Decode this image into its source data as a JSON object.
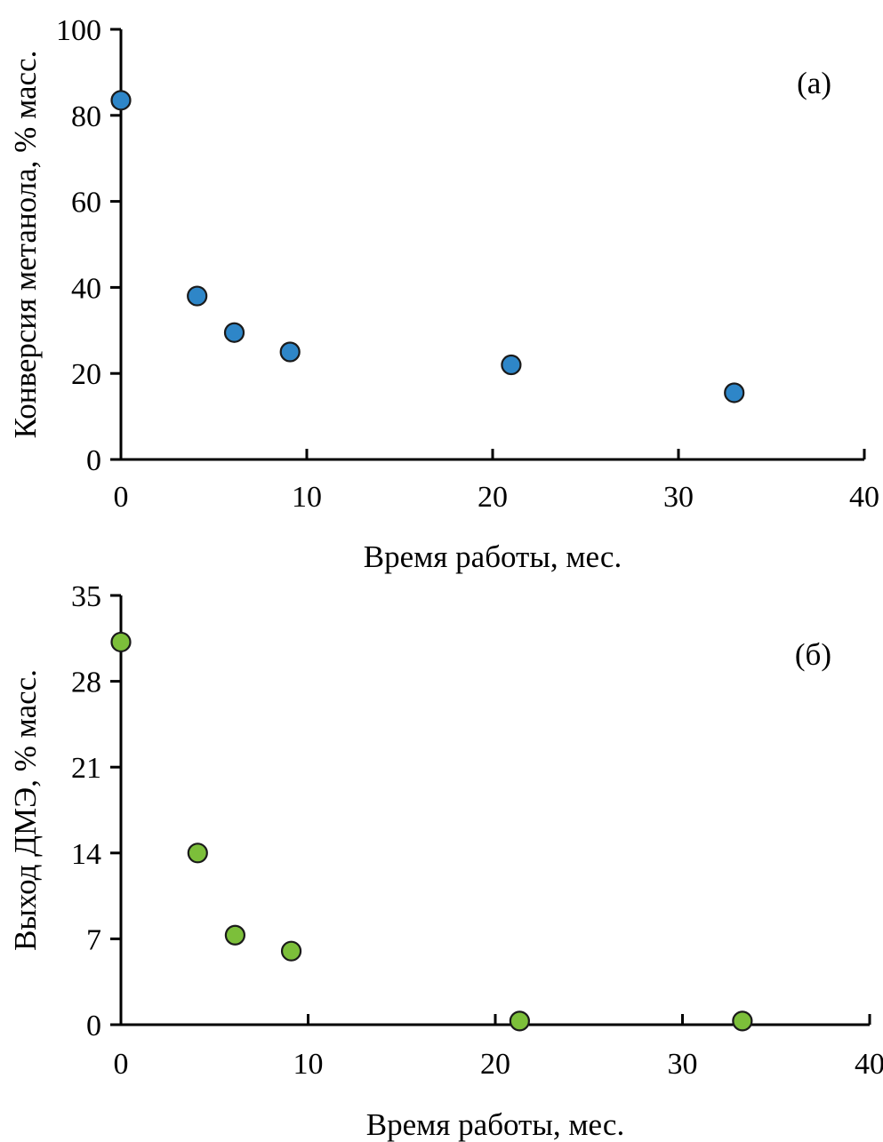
{
  "chart_data": [
    {
      "type": "scatter",
      "panel_label": "(a)",
      "xlabel": "Время работы, мес.",
      "ylabel": "Конверсия метанола, % масс.",
      "xlim": [
        0,
        40
      ],
      "ylim": [
        0,
        100
      ],
      "xticks": [
        0,
        10,
        20,
        30,
        40
      ],
      "yticks": [
        0,
        20,
        40,
        60,
        80,
        100
      ],
      "x_tick_labels": [
        "0",
        "10",
        "20",
        "30",
        "40"
      ],
      "y_tick_labels": [
        "0",
        "20",
        "40",
        "60",
        "80",
        "100"
      ],
      "grid": false,
      "marker_color": "#2e86c8",
      "series": [
        {
          "name": "Конверсия метанола",
          "x": [
            0,
            4.1,
            6.1,
            9.1,
            21,
            33
          ],
          "y": [
            83.5,
            38,
            29.5,
            25,
            22,
            15.5
          ]
        }
      ]
    },
    {
      "type": "scatter",
      "panel_label": "(б)",
      "xlabel": "Время работы, мес.",
      "ylabel": "Выход ДМЭ, % масс.",
      "xlim": [
        0,
        40
      ],
      "ylim": [
        0,
        35
      ],
      "xticks": [
        0,
        10,
        20,
        30,
        40
      ],
      "yticks": [
        0,
        7,
        14,
        21,
        28,
        35
      ],
      "x_tick_labels": [
        "0",
        "10",
        "20",
        "30",
        "40"
      ],
      "y_tick_labels": [
        "0",
        "7",
        "14",
        "21",
        "28",
        "35"
      ],
      "grid": false,
      "marker_color": "#7cbf3a",
      "series": [
        {
          "name": "Выход ДМЭ",
          "x": [
            0,
            4.1,
            6.1,
            9.1,
            21.3,
            33.2
          ],
          "y": [
            31.2,
            14,
            7.3,
            6,
            0.3,
            0.3
          ]
        }
      ]
    }
  ]
}
